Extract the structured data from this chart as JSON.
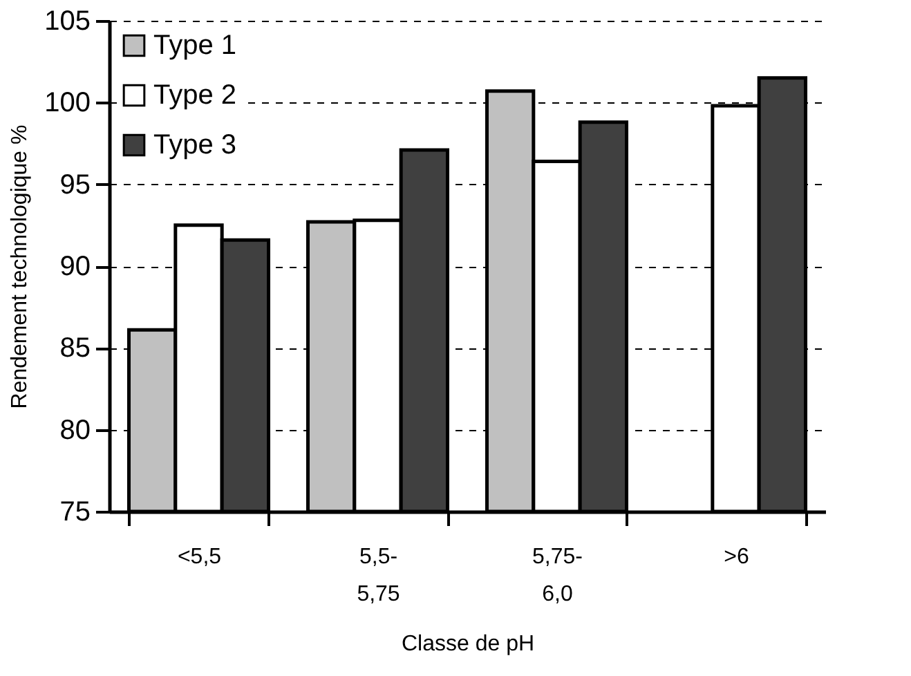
{
  "chart_data": {
    "type": "bar",
    "xlabel": "Classe de pH",
    "ylabel": "Rendement technologique %",
    "categories": [
      "<5,5",
      "5,5-5,75",
      "5,75-6,0",
      ">6"
    ],
    "series": [
      {
        "name": "Type  1",
        "color": "#c0c0c0",
        "values": [
          86.1,
          92.7,
          100.7,
          null
        ]
      },
      {
        "name": "Type  2",
        "color": "#ffffff",
        "values": [
          92.5,
          92.8,
          96.4,
          99.8
        ]
      },
      {
        "name": "Type  3",
        "color": "#404040",
        "values": [
          91.6,
          97.1,
          98.8,
          101.5
        ]
      }
    ],
    "ylim": [
      75,
      105
    ],
    "yticks": [
      75,
      80,
      85,
      90,
      95,
      100,
      105
    ],
    "grid": "y",
    "legend": "top left"
  }
}
